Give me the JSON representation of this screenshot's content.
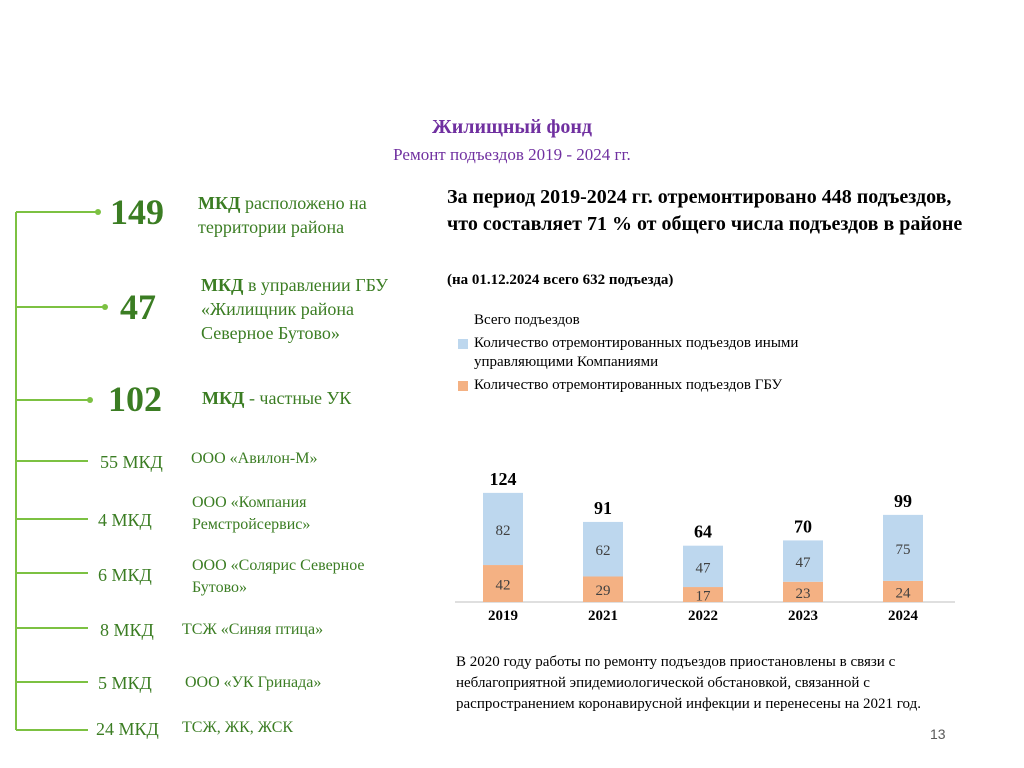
{
  "header": {
    "title": "Жилищный фонд",
    "subtitle": "Ремонт подъездов 2019 - 2024 гг."
  },
  "left_panel": {
    "main_items": [
      {
        "number": "149",
        "bold": "МКД",
        "text": " расположено на территории района"
      },
      {
        "number": "47",
        "bold": "МКД",
        "text": " в управлении ГБУ «Жилищник района Северное Бутово»"
      },
      {
        "number": "102",
        "bold": "МКД",
        "text": " - частные УК"
      }
    ],
    "companies": [
      {
        "count": "55 МКД",
        "name": "ООО «Авилон-М»"
      },
      {
        "count": "4 МКД",
        "name": "ООО «Компания Ремстройсервис»"
      },
      {
        "count": "6 МКД",
        "name": "ООО «Солярис Северное Бутово»"
      },
      {
        "count": "8 МКД",
        "name": "ТСЖ «Синяя птица»"
      },
      {
        "count": "5 МКД",
        "name": "ООО «УК Гринада»"
      },
      {
        "count": "24 МКД",
        "name": "ТСЖ, ЖК, ЖСК"
      }
    ]
  },
  "summary": {
    "text": "За период 2019-2024 гг. отремонтировано 448 подъездов, что составляет 71 % от общего числа подъездов в районе",
    "note": "(на 01.12.2024 всего 632 подъезда)"
  },
  "footnote": "В 2020 году работы по ремонту подъездов приостановлены в связи с неблагоприятной эпидемиологической обстановкой, связанной с распространением коронавирусной инфекции и перенесены на 2021 год.",
  "page_number": "13",
  "colors": {
    "green": "#3b7d23",
    "purple": "#7030a0",
    "series_other": "#bdd7ee",
    "series_gbu": "#f4b183"
  },
  "chart_data": {
    "type": "bar",
    "stacked": true,
    "categories": [
      "2019",
      "2021",
      "2022",
      "2023",
      "2024"
    ],
    "series": [
      {
        "name": "Количество отремонтированных подъездов ГБУ",
        "values": [
          42,
          29,
          17,
          23,
          24
        ],
        "color": "#f4b183"
      },
      {
        "name": "Количество отремонтированных подъездов иными управляющими Компаниями",
        "values": [
          82,
          62,
          47,
          47,
          75
        ],
        "color": "#bdd7ee"
      }
    ],
    "totals": {
      "name": "Всего подъездов",
      "values": [
        124,
        91,
        64,
        70,
        99
      ]
    },
    "legend_position": "top",
    "ylim": [
      0,
      130
    ],
    "grid": false
  }
}
